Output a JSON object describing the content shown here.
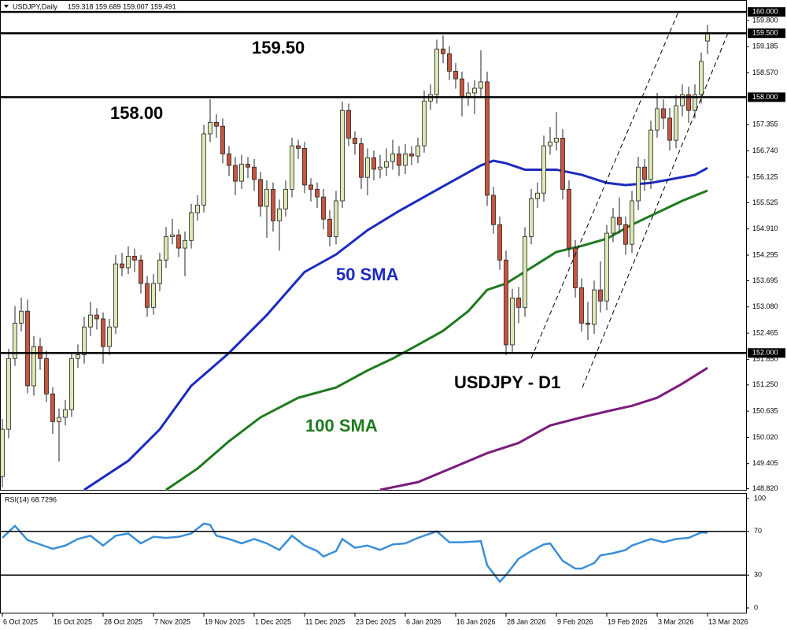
{
  "chart_data": {
    "type": "candlestick",
    "symbol_label": "USDJPY,Daily",
    "ohlc_label": "159.318 159.689 159.007 159.491",
    "categories": [
      "6 Oct 2025",
      null,
      null,
      null,
      null,
      null,
      null,
      null,
      "16 Oct 2025",
      null,
      null,
      null,
      null,
      null,
      null,
      null,
      "28 Oct 2025",
      null,
      null,
      null,
      null,
      null,
      null,
      null,
      "7 Nov 2025",
      null,
      null,
      null,
      null,
      null,
      null,
      null,
      "19 Nov 2025",
      null,
      null,
      null,
      null,
      null,
      null,
      null,
      "1 Dec 2025",
      null,
      null,
      null,
      null,
      null,
      null,
      null,
      "11 Dec 2025",
      null,
      null,
      null,
      null,
      null,
      null,
      null,
      "23 Dec 2025",
      null,
      null,
      null,
      null,
      null,
      null,
      null,
      "6 Jan 2026",
      null,
      null,
      null,
      null,
      null,
      null,
      null,
      "16 Jan 2026",
      null,
      null,
      null,
      null,
      null,
      null,
      null,
      "28 Jan 2026",
      null,
      null,
      null,
      null,
      null,
      null,
      null,
      "9 Feb 2026",
      null,
      null,
      null,
      null,
      null,
      null,
      null,
      "19 Feb 2026",
      null,
      null,
      null,
      null,
      null,
      null,
      null,
      "3 Mar 2026",
      null,
      null,
      null,
      null,
      null,
      null,
      null,
      "13 Mar 2026"
    ],
    "ohlc": [
      [
        149.1,
        150.45,
        148.85,
        150.21
      ],
      [
        150.21,
        152.1,
        150.0,
        151.87
      ],
      [
        151.87,
        153.1,
        151.7,
        152.7
      ],
      [
        152.7,
        153.3,
        152.5,
        152.98
      ],
      [
        152.98,
        153.25,
        151.05,
        151.23
      ],
      [
        151.23,
        152.4,
        151.0,
        152.15
      ],
      [
        152.15,
        152.35,
        151.6,
        151.87
      ],
      [
        151.87,
        152.05,
        150.85,
        151.04
      ],
      [
        151.04,
        151.2,
        150.1,
        150.39
      ],
      [
        150.39,
        150.7,
        149.45,
        150.49
      ],
      [
        150.49,
        150.9,
        150.3,
        150.67
      ],
      [
        150.67,
        152.0,
        150.5,
        151.87
      ],
      [
        151.87,
        152.2,
        151.65,
        151.96
      ],
      [
        151.96,
        152.85,
        151.75,
        152.61
      ],
      [
        152.61,
        153.2,
        152.4,
        152.89
      ],
      [
        152.89,
        153.05,
        152.55,
        152.8
      ],
      [
        152.8,
        152.95,
        151.75,
        152.15
      ],
      [
        152.15,
        152.8,
        151.95,
        152.61
      ],
      [
        152.61,
        154.3,
        152.45,
        154.09
      ],
      [
        154.09,
        154.35,
        153.8,
        154.0
      ],
      [
        154.0,
        154.5,
        153.85,
        154.27
      ],
      [
        154.27,
        154.45,
        153.9,
        154.18
      ],
      [
        154.18,
        154.3,
        153.4,
        153.63
      ],
      [
        153.63,
        153.8,
        152.85,
        153.07
      ],
      [
        153.07,
        153.85,
        152.9,
        153.63
      ],
      [
        153.63,
        154.35,
        153.45,
        154.18
      ],
      [
        154.18,
        154.95,
        154.0,
        154.73
      ],
      [
        154.73,
        155.15,
        154.55,
        154.77
      ],
      [
        154.77,
        154.9,
        154.25,
        154.46
      ],
      [
        154.46,
        154.85,
        153.8,
        154.64
      ],
      [
        154.64,
        155.5,
        154.45,
        155.29
      ],
      [
        155.29,
        155.7,
        155.1,
        155.47
      ],
      [
        155.47,
        157.35,
        155.3,
        157.14
      ],
      [
        157.14,
        157.95,
        156.95,
        157.41
      ],
      [
        157.41,
        157.6,
        157.05,
        157.32
      ],
      [
        157.32,
        157.5,
        156.45,
        156.67
      ],
      [
        156.67,
        156.85,
        156.15,
        156.4
      ],
      [
        156.4,
        156.6,
        155.7,
        156.03
      ],
      [
        156.03,
        156.65,
        155.85,
        156.43
      ],
      [
        156.43,
        156.6,
        156.1,
        156.36
      ],
      [
        156.36,
        156.55,
        155.8,
        156.07
      ],
      [
        156.07,
        156.25,
        155.2,
        155.44
      ],
      [
        155.44,
        156.05,
        154.7,
        155.84
      ],
      [
        155.84,
        156.0,
        154.85,
        155.1
      ],
      [
        155.1,
        155.6,
        154.4,
        155.38
      ],
      [
        155.38,
        156.05,
        155.2,
        155.84
      ],
      [
        155.84,
        157.05,
        155.65,
        156.86
      ],
      [
        156.86,
        157.0,
        156.55,
        156.8
      ],
      [
        156.8,
        156.95,
        155.75,
        155.94
      ],
      [
        155.94,
        156.1,
        155.55,
        155.84
      ],
      [
        155.84,
        156.0,
        155.4,
        155.66
      ],
      [
        155.66,
        155.85,
        154.9,
        155.14
      ],
      [
        155.14,
        155.35,
        154.5,
        154.73
      ],
      [
        154.73,
        155.8,
        154.55,
        155.57
      ],
      [
        155.57,
        157.9,
        155.4,
        157.69
      ],
      [
        157.69,
        157.85,
        156.85,
        157.04
      ],
      [
        157.04,
        157.2,
        156.65,
        156.91
      ],
      [
        156.91,
        157.05,
        155.85,
        156.12
      ],
      [
        156.12,
        156.8,
        155.7,
        156.58
      ],
      [
        156.58,
        156.75,
        156.05,
        156.31
      ],
      [
        156.31,
        156.65,
        156.1,
        156.36
      ],
      [
        156.36,
        156.8,
        156.15,
        156.49
      ],
      [
        156.49,
        157.0,
        156.3,
        156.67
      ],
      [
        156.67,
        156.85,
        156.15,
        156.4
      ],
      [
        156.4,
        156.9,
        156.2,
        156.67
      ],
      [
        156.67,
        156.85,
        156.4,
        156.62
      ],
      [
        156.62,
        157.05,
        156.45,
        156.86
      ],
      [
        156.86,
        158.15,
        156.7,
        157.91
      ],
      [
        157.91,
        158.3,
        157.7,
        158.06
      ],
      [
        158.06,
        159.35,
        157.85,
        159.13
      ],
      [
        159.13,
        159.45,
        158.8,
        159.02
      ],
      [
        159.02,
        159.2,
        158.4,
        158.61
      ],
      [
        158.61,
        158.8,
        158.2,
        158.43
      ],
      [
        158.43,
        158.6,
        157.55,
        158.02
      ],
      [
        158.02,
        158.35,
        157.8,
        158.1
      ],
      [
        158.1,
        158.4,
        157.6,
        158.21
      ],
      [
        158.21,
        159.1,
        158.0,
        158.36
      ],
      [
        158.36,
        158.6,
        155.45,
        155.7
      ],
      [
        155.7,
        155.9,
        154.8,
        155.01
      ],
      [
        155.01,
        155.2,
        153.95,
        154.18
      ],
      [
        154.18,
        154.4,
        151.95,
        152.19
      ],
      [
        152.19,
        153.5,
        152.0,
        153.29
      ],
      [
        153.29,
        153.55,
        152.7,
        153.07
      ],
      [
        153.07,
        154.95,
        152.85,
        154.73
      ],
      [
        154.73,
        155.85,
        154.55,
        155.62
      ],
      [
        155.62,
        156.0,
        155.4,
        155.75
      ],
      [
        155.75,
        157.1,
        155.55,
        156.86
      ],
      [
        156.86,
        157.3,
        156.65,
        156.95
      ],
      [
        156.95,
        157.65,
        156.75,
        157.04
      ],
      [
        157.04,
        157.25,
        155.6,
        155.84
      ],
      [
        155.84,
        156.05,
        154.25,
        154.46
      ],
      [
        154.46,
        154.65,
        153.3,
        153.53
      ],
      [
        153.53,
        153.75,
        152.5,
        152.7
      ],
      [
        152.7,
        153.2,
        152.3,
        152.67
      ],
      [
        152.67,
        153.7,
        152.45,
        153.48
      ],
      [
        153.48,
        154.15,
        152.95,
        153.22
      ],
      [
        153.22,
        155.0,
        153.0,
        154.81
      ],
      [
        154.81,
        155.4,
        154.6,
        155.18
      ],
      [
        155.18,
        155.65,
        154.8,
        155.01
      ],
      [
        155.01,
        155.2,
        154.3,
        154.55
      ],
      [
        154.55,
        155.8,
        154.35,
        155.57
      ],
      [
        155.57,
        156.6,
        155.35,
        156.36
      ],
      [
        156.36,
        156.55,
        155.8,
        156.07
      ],
      [
        156.07,
        157.45,
        155.85,
        157.23
      ],
      [
        157.23,
        158.1,
        157.05,
        157.73
      ],
      [
        157.73,
        157.95,
        157.25,
        157.51
      ],
      [
        157.51,
        157.75,
        156.75,
        156.99
      ],
      [
        156.99,
        158.05,
        156.8,
        157.8
      ],
      [
        157.8,
        158.3,
        157.55,
        158.06
      ],
      [
        158.06,
        158.25,
        157.4,
        157.69
      ],
      [
        157.69,
        158.3,
        157.5,
        158.06
      ],
      [
        158.06,
        159.05,
        157.85,
        158.84
      ],
      [
        159.318,
        159.689,
        159.007,
        159.491
      ]
    ],
    "colors": {
      "up": "#dde8b4",
      "down": "#c8543e",
      "outline": "#222222"
    },
    "ylim": [
      148.79,
      160.28
    ],
    "yticks": [
      {
        "value": 159.8,
        "label": "159.800"
      },
      {
        "value": 159.185,
        "label": "159.185"
      },
      {
        "value": 158.57,
        "label": "158.570"
      },
      {
        "value": 157.355,
        "label": "157.355"
      },
      {
        "value": 156.74,
        "label": "156.740"
      },
      {
        "value": 156.125,
        "label": "156.125"
      },
      {
        "value": 155.525,
        "label": "155.525"
      },
      {
        "value": 154.91,
        "label": "154.910"
      },
      {
        "value": 154.295,
        "label": "154.295"
      },
      {
        "value": 153.695,
        "label": "153.695"
      },
      {
        "value": 153.08,
        "label": "153.080"
      },
      {
        "value": 152.465,
        "label": "152.465"
      },
      {
        "value": 151.85,
        "label": "151.850"
      },
      {
        "value": 151.25,
        "label": "151.250"
      },
      {
        "value": 150.635,
        "label": "150.635"
      },
      {
        "value": 150.02,
        "label": "150.020"
      },
      {
        "value": 149.405,
        "label": "149.405"
      },
      {
        "value": 148.82,
        "label": "148.820"
      }
    ],
    "levels": [
      {
        "value": 160,
        "label": "160.000"
      },
      {
        "value": 159.5,
        "label": "159.500"
      },
      {
        "value": 158,
        "label": "158.000"
      },
      {
        "value": 152,
        "label": "152.000"
      }
    ],
    "annotations": [
      "159.50",
      "158.00",
      "USDJPY - D1"
    ],
    "series": [
      {
        "name": "50 SMA",
        "color": "#1c2bbd",
        "x": [
          13,
          20,
          25,
          30,
          36,
          42,
          48,
          53,
          58,
          63,
          67,
          71,
          76,
          78,
          80,
          83,
          88,
          92,
          96,
          99,
          103,
          106,
          110,
          112
        ],
        "values": [
          148.79,
          149.47,
          150.21,
          151.23,
          152.0,
          152.89,
          153.9,
          154.31,
          154.88,
          155.33,
          155.66,
          155.99,
          156.4,
          156.51,
          156.45,
          156.3,
          156.3,
          156.18,
          155.99,
          155.94,
          155.99,
          156.07,
          156.18,
          156.34
        ]
      },
      {
        "name": "100 SMA",
        "color": "#1f7a1f",
        "x": [
          26,
          31,
          36,
          41,
          47,
          53,
          58,
          62,
          66,
          70,
          74,
          77,
          80,
          84,
          88,
          92,
          96,
          100,
          104,
          108,
          112
        ],
        "values": [
          148.79,
          149.29,
          149.93,
          150.49,
          150.95,
          151.19,
          151.59,
          151.87,
          152.19,
          152.52,
          152.98,
          153.48,
          153.63,
          154.0,
          154.37,
          154.51,
          154.68,
          155.01,
          155.29,
          155.57,
          155.81
        ]
      },
      {
        "color": "#7b1c7b",
        "x": [
          60,
          66,
          72,
          77,
          82,
          87,
          92,
          96,
          100,
          104,
          108,
          112
        ],
        "values": [
          148.79,
          148.97,
          149.34,
          149.65,
          149.89,
          150.3,
          150.49,
          150.63,
          150.76,
          150.95,
          151.28,
          151.65
        ]
      }
    ],
    "rsi": {
      "title": "RSI(14) 68.7296",
      "color": "#3a8fd6",
      "x": [
        0,
        2,
        4,
        6,
        8,
        10,
        12,
        14,
        16,
        18,
        20,
        22,
        24,
        26,
        28,
        30,
        32,
        33,
        34,
        36,
        38,
        40,
        42,
        44,
        46,
        48,
        50,
        51,
        53,
        54,
        56,
        58,
        60,
        62,
        64,
        66,
        69,
        71,
        73,
        76,
        77,
        79,
        80,
        82,
        84,
        86,
        87,
        89,
        91,
        92,
        94,
        95,
        97,
        99,
        100,
        101,
        103,
        105,
        107,
        109,
        111,
        112
      ],
      "values": [
        64,
        75,
        62,
        58,
        54,
        57,
        63,
        66,
        57,
        66,
        68,
        59,
        65,
        64,
        65,
        68,
        77,
        76,
        66,
        63,
        59,
        63,
        59,
        53,
        66,
        57,
        52,
        47,
        52,
        63,
        55,
        57,
        53,
        58,
        59,
        64,
        70,
        60,
        60,
        61,
        39,
        24,
        30,
        45,
        52,
        58,
        59,
        43,
        36,
        36,
        41,
        48,
        50,
        53,
        57,
        59,
        63,
        60,
        63,
        64,
        69,
        68.73
      ],
      "ylim": [
        0,
        100
      ],
      "yticks": [
        100,
        70,
        30,
        0
      ],
      "levels": [
        70,
        30
      ]
    }
  }
}
